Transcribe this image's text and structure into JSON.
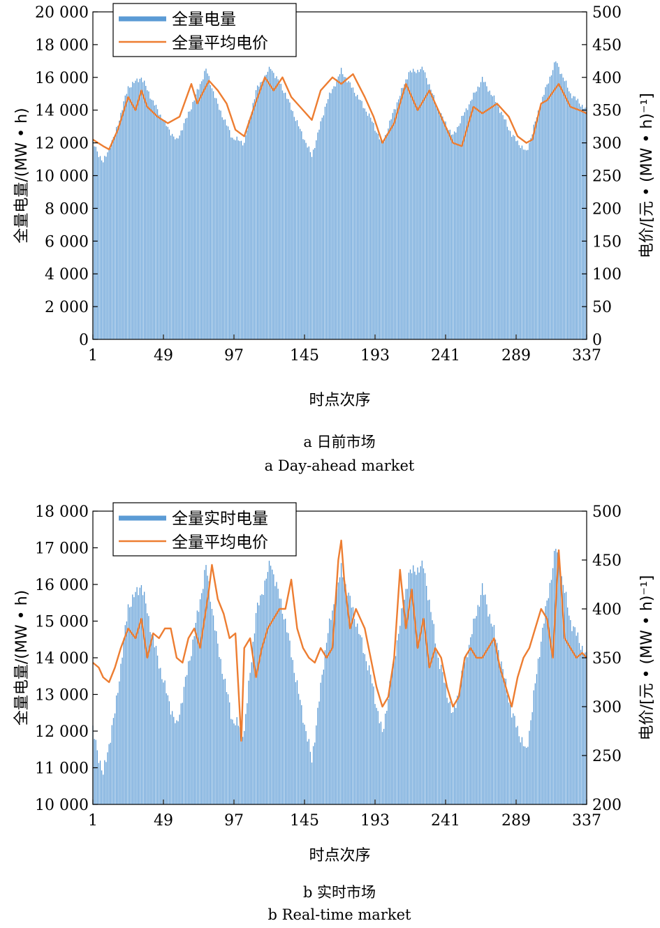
{
  "chart_data": [
    {
      "type": "bar+line",
      "title": "",
      "caption_zh": "a  日前市场",
      "caption_en": "a  Day-ahead market",
      "xlabel": "时点次序",
      "ylabel_left": "全量电量/(MW • h)",
      "ylabel_right": "电价/[元 • (MW • h)⁻¹]",
      "x_ticks": [
        1,
        49,
        97,
        145,
        193,
        241,
        289,
        337
      ],
      "xlim": [
        1,
        337
      ],
      "ylim_left": [
        0,
        20000
      ],
      "ylim_right": [
        0,
        500
      ],
      "y_ticks_left": [
        "0",
        "2 000",
        "4 000",
        "6 000",
        "8 000",
        "10 000",
        "12 000",
        "14 000",
        "16 000",
        "18 000",
        "20 000"
      ],
      "y_ticks_right": [
        "0",
        "50",
        "100",
        "150",
        "200",
        "250",
        "300",
        "350",
        "400",
        "450",
        "500"
      ],
      "legend_position": "top-left",
      "series": [
        {
          "name": "全量电量",
          "kind": "bar",
          "axis": "left",
          "color": "#5b9bd5",
          "keypoints_x": [
            1,
            8,
            16,
            25,
            34,
            42,
            50,
            58,
            68,
            78,
            86,
            96,
            104,
            112,
            122,
            132,
            142,
            150,
            160,
            170,
            180,
            190,
            198,
            206,
            216,
            226,
            236,
            246,
            256,
            266,
            276,
            286,
            296,
            306,
            316,
            326,
            337
          ],
          "keypoints_y": [
            12000,
            10800,
            12500,
            15400,
            16000,
            14500,
            13200,
            12100,
            14200,
            16500,
            14300,
            12300,
            12000,
            15200,
            16600,
            15000,
            12800,
            11200,
            14500,
            16400,
            15000,
            13500,
            11900,
            14000,
            16300,
            16500,
            14000,
            12400,
            14200,
            15900,
            14400,
            12500,
            11400,
            14500,
            17000,
            15000,
            14000
          ]
        },
        {
          "name": "全量平均电价",
          "kind": "line",
          "axis": "right",
          "color": "#ed7d31",
          "keypoints_x": [
            1,
            8,
            12,
            18,
            25,
            30,
            34,
            38,
            45,
            52,
            60,
            68,
            72,
            80,
            86,
            92,
            98,
            104,
            110,
            118,
            124,
            130,
            136,
            142,
            150,
            156,
            164,
            170,
            178,
            186,
            192,
            198,
            206,
            214,
            222,
            230,
            238,
            246,
            252,
            260,
            266,
            276,
            284,
            290,
            296,
            300,
            306,
            310,
            318,
            326,
            332,
            337
          ],
          "keypoints_y": [
            305,
            295,
            290,
            320,
            370,
            350,
            380,
            355,
            340,
            330,
            340,
            390,
            360,
            395,
            380,
            360,
            320,
            310,
            350,
            400,
            380,
            400,
            370,
            355,
            335,
            380,
            400,
            390,
            405,
            370,
            340,
            300,
            330,
            390,
            350,
            380,
            340,
            300,
            295,
            355,
            345,
            360,
            340,
            310,
            300,
            305,
            360,
            365,
            390,
            355,
            350,
            345
          ]
        }
      ]
    },
    {
      "type": "bar+line",
      "title": "",
      "caption_zh": "b  实时市场",
      "caption_en": "b  Real-time market",
      "xlabel": "时点次序",
      "ylabel_left": "全量电量/(MW • h)",
      "ylabel_right": "电价/[元 • (MW • h)⁻¹]",
      "x_ticks": [
        1,
        49,
        97,
        145,
        193,
        241,
        289,
        337
      ],
      "xlim": [
        1,
        337
      ],
      "ylim_left": [
        10000,
        18000
      ],
      "ylim_right": [
        200,
        500
      ],
      "y_ticks_left": [
        "10 000",
        "11 000",
        "12 000",
        "13 000",
        "14 000",
        "15 000",
        "16 000",
        "17 000",
        "18 000"
      ],
      "y_ticks_right": [
        "200",
        "250",
        "300",
        "350",
        "400",
        "450",
        "500"
      ],
      "legend_position": "top-left",
      "series": [
        {
          "name": "全量实时电量",
          "kind": "bar",
          "axis": "left",
          "color": "#5b9bd5",
          "keypoints_x": [
            1,
            8,
            16,
            25,
            34,
            42,
            50,
            58,
            68,
            78,
            86,
            96,
            104,
            112,
            122,
            132,
            142,
            150,
            160,
            170,
            180,
            190,
            198,
            206,
            216,
            226,
            236,
            246,
            256,
            266,
            276,
            286,
            296,
            306,
            316,
            326,
            337
          ],
          "keypoints_y": [
            12000,
            10800,
            12500,
            15400,
            16000,
            14500,
            13200,
            12100,
            14200,
            16500,
            14300,
            12300,
            12000,
            15200,
            16600,
            15000,
            12800,
            11200,
            14500,
            16400,
            15000,
            13500,
            11900,
            14000,
            16300,
            16500,
            14000,
            12400,
            14200,
            15900,
            14400,
            12500,
            11400,
            14500,
            17000,
            15000,
            14000
          ]
        },
        {
          "name": "全量平均电价",
          "kind": "line",
          "axis": "right",
          "color": "#ed7d31",
          "keypoints_x": [
            1,
            5,
            8,
            12,
            16,
            20,
            25,
            30,
            34,
            38,
            42,
            46,
            50,
            54,
            58,
            62,
            66,
            70,
            74,
            78,
            80,
            82,
            86,
            90,
            94,
            98,
            100,
            102,
            104,
            108,
            112,
            116,
            120,
            124,
            128,
            132,
            136,
            140,
            144,
            148,
            152,
            156,
            160,
            164,
            168,
            170,
            172,
            176,
            180,
            186,
            190,
            194,
            198,
            202,
            206,
            210,
            214,
            218,
            222,
            226,
            230,
            234,
            238,
            242,
            246,
            250,
            254,
            258,
            262,
            266,
            270,
            274,
            278,
            282,
            286,
            290,
            294,
            298,
            302,
            306,
            310,
            314,
            318,
            322,
            326,
            330,
            334,
            337
          ],
          "keypoints_y": [
            345,
            340,
            330,
            325,
            340,
            360,
            380,
            370,
            390,
            350,
            375,
            370,
            380,
            380,
            350,
            345,
            370,
            380,
            360,
            400,
            420,
            445,
            410,
            395,
            370,
            375,
            320,
            265,
            360,
            370,
            330,
            360,
            380,
            390,
            400,
            400,
            430,
            380,
            360,
            350,
            345,
            360,
            350,
            360,
            450,
            470,
            430,
            380,
            400,
            380,
            350,
            320,
            300,
            310,
            350,
            440,
            380,
            420,
            360,
            390,
            340,
            360,
            350,
            320,
            300,
            310,
            350,
            360,
            350,
            350,
            360,
            370,
            340,
            320,
            300,
            330,
            350,
            360,
            380,
            400,
            390,
            350,
            460,
            370,
            360,
            350,
            355,
            350
          ]
        }
      ]
    }
  ],
  "colors": {
    "bar": "#5b9bd5",
    "line": "#ed7d31"
  }
}
